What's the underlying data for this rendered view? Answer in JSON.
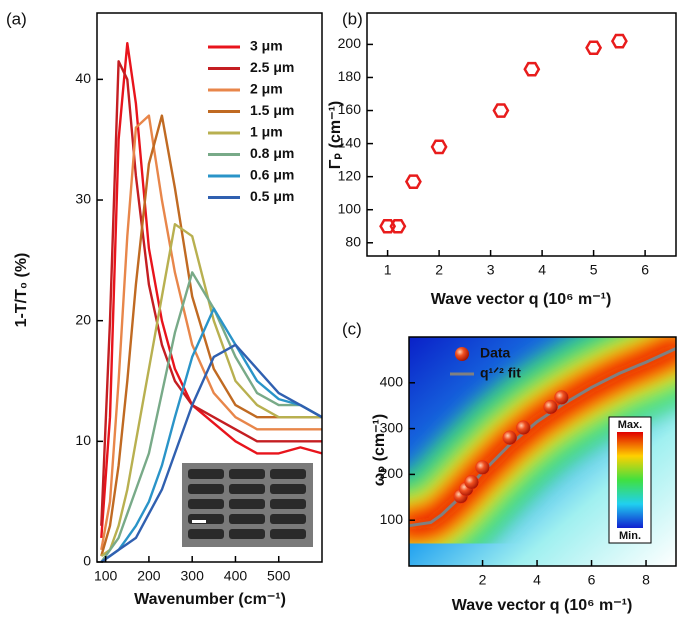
{
  "chart_data": [
    {
      "type": "line",
      "panel_label": "(a)",
      "xlabel": "Wavenumber (cm⁻¹)",
      "ylabel": "1-T/T₀ (%)",
      "x": [
        90,
        110,
        130,
        150,
        170,
        200,
        230,
        260,
        300,
        350,
        400,
        450,
        500,
        550,
        600
      ],
      "xlim": [
        80,
        600
      ],
      "xticks": [
        100,
        200,
        300,
        400,
        500
      ],
      "ylim": [
        0,
        45.5
      ],
      "yticks": [
        0,
        10,
        20,
        30,
        40
      ],
      "series": [
        {
          "name": "3 μm",
          "color": "#e8141c",
          "values": [
            2,
            12,
            35,
            43,
            38,
            26,
            20,
            16,
            13,
            11.5,
            10,
            9,
            9,
            9.5,
            9
          ]
        },
        {
          "name": "2.5 μm",
          "color": "#c41e22",
          "values": [
            3,
            20,
            41.5,
            40,
            32,
            23,
            18,
            15,
            13,
            12,
            11,
            10,
            10,
            10,
            10
          ]
        },
        {
          "name": "2 μm",
          "color": "#e8864a",
          "values": [
            1,
            5,
            15,
            27,
            36,
            37,
            30,
            24,
            18,
            14,
            12,
            11,
            11,
            11,
            11
          ]
        },
        {
          "name": "1.5 μm",
          "color": "#c06a22",
          "values": [
            0.5,
            3,
            8,
            15,
            23,
            33,
            37,
            31,
            22,
            16,
            13,
            12,
            12,
            12,
            12
          ]
        },
        {
          "name": "1 μm",
          "color": "#b8b050",
          "values": [
            0.5,
            1,
            3,
            6,
            10,
            16,
            22,
            28,
            27,
            20,
            15,
            13,
            12,
            12,
            12
          ]
        },
        {
          "name": "0.8 μm",
          "color": "#78aa88",
          "values": [
            0,
            1,
            2,
            4,
            6,
            9,
            14,
            19,
            24,
            21,
            17,
            14,
            13,
            13,
            12
          ]
        },
        {
          "name": "0.6 μm",
          "color": "#2a94c8",
          "values": [
            0,
            0.5,
            1,
            2,
            3,
            5,
            8,
            12,
            17,
            21,
            18,
            15,
            13.5,
            13,
            12
          ]
        },
        {
          "name": "0.5 μm",
          "color": "#3060b0",
          "values": [
            0,
            0.5,
            1,
            1.5,
            2,
            4,
            6,
            9,
            13,
            17,
            18,
            16,
            14,
            13,
            12
          ]
        }
      ]
    },
    {
      "type": "scatter",
      "panel_label": "(b)",
      "xlabel": "Wave vector q (10⁶ m⁻¹)",
      "ylabel": "Γₚ (cm⁻¹)",
      "x": [
        1,
        1.2,
        1.5,
        2,
        3.2,
        3.8,
        5,
        5.5
      ],
      "values": [
        90,
        90,
        117,
        138,
        160,
        185,
        198,
        202
      ],
      "color": "#e81c1c",
      "marker": "hexagon",
      "xlim": [
        0.6,
        6.6
      ],
      "xticks": [
        1,
        2,
        3,
        4,
        5,
        6
      ],
      "ylim": [
        72,
        219
      ],
      "yticks": [
        80,
        100,
        120,
        140,
        160,
        180,
        200
      ]
    },
    {
      "type": "scatter",
      "panel_label": "(c)",
      "xlabel": "Wave vector q (10⁶ m⁻¹)",
      "ylabel": "ωₚ (cm⁻¹)",
      "xlim": [
        -0.7,
        9.1
      ],
      "xticks": [
        2,
        4,
        6,
        8
      ],
      "ylim": [
        0,
        500
      ],
      "yticks": [
        100,
        200,
        300,
        400
      ],
      "colorbar": {
        "max": "Max.",
        "min": "Min."
      },
      "series": [
        {
          "name": "Data",
          "kind": "scatter",
          "color": "#f03010",
          "x": [
            1.2,
            1.4,
            1.6,
            2.0,
            3.0,
            3.5,
            4.5,
            4.9
          ],
          "values": [
            152,
            168,
            183,
            215,
            280,
            302,
            347,
            368
          ]
        },
        {
          "name": "q¹ᐟ² fit",
          "kind": "line",
          "color": "#808080",
          "x": [
            -0.7,
            0.1,
            0.5,
            1,
            2,
            3,
            4,
            5,
            6,
            7,
            8,
            9.1
          ],
          "values": [
            88,
            95,
            112,
            140,
            205,
            265,
            315,
            355,
            390,
            420,
            445,
            475
          ]
        }
      ]
    }
  ]
}
